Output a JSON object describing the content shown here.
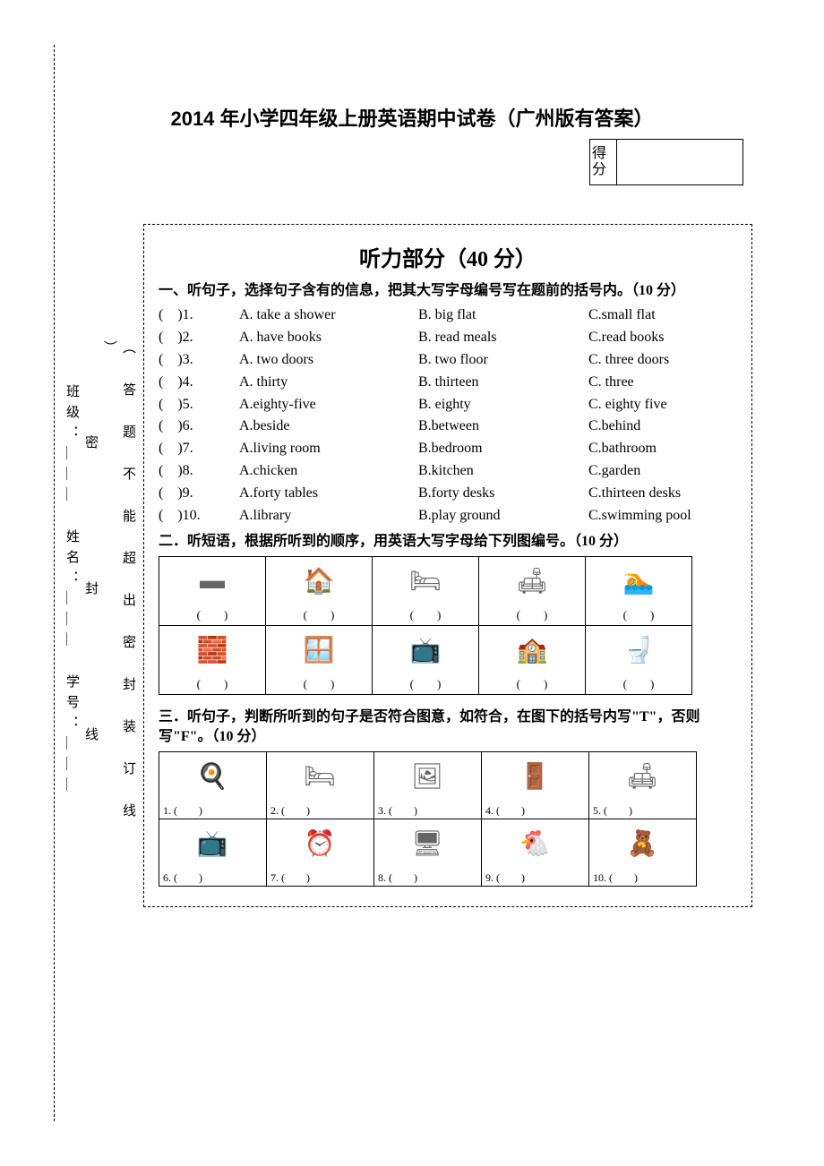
{
  "title": "2014 年小学四年级上册英语期中试卷（广州版有答案）",
  "score": {
    "label": "得分"
  },
  "sidebar": {
    "col1": "班级：＿＿＿ 姓名：＿＿＿ 学号：＿＿＿",
    "col2a": "密",
    "col2b": "封",
    "col2c": "线",
    "col3": "（ 答 题 不 能 超 出 密 封 装 订 线 ）"
  },
  "sectionTitle": "听力部分（40 分）",
  "q1": {
    "instr": "一、听句子，选择句子含有的信息，把其大写字母编号写在题前的括号内。（10 分）",
    "rows": [
      {
        "n": "(　)1.",
        "a": "A. take a shower",
        "b": "B. big flat",
        "c": "C.small flat"
      },
      {
        "n": "(　)2.",
        "a": "A. have books",
        "b": "B. read meals",
        "c": "C.read books"
      },
      {
        "n": "(　)3.",
        "a": "A. two doors",
        "b": "B. two floor",
        "c": "C. three doors"
      },
      {
        "n": "(　)4.",
        "a": "A. thirty",
        "b": "B. thirteen",
        "c": "C. three"
      },
      {
        "n": "(　)5.",
        "a": "A.eighty-five",
        "b": "B. eighty",
        "c": "C. eighty five"
      },
      {
        "n": "(　)6.",
        "a": "A.beside",
        "b": "B.between",
        "c": "C.behind"
      },
      {
        "n": "(　)7.",
        "a": "A.living room",
        "b": "B.bedroom",
        "c": "C.bathroom"
      },
      {
        "n": "(　)8.",
        "a": "A.chicken",
        "b": "B.kitchen",
        "c": "C.garden"
      },
      {
        "n": "(　)9.",
        "a": "A.forty tables",
        "b": "B.forty desks",
        "c": "C.thirteen desks"
      },
      {
        "n": "(　)10.",
        "a": "A.library",
        "b": "B.play ground",
        "c": "C.swimming pool"
      }
    ]
  },
  "q2": {
    "instr": "二．听短语，根据所听到的顺序，用英语大写字母给下列图编号。（10 分）",
    "caption": "(　　)",
    "icons_row1": [
      "▬",
      "🏠",
      "🛏",
      "🛋",
      "🏊"
    ],
    "icons_row2": [
      "🧱",
      "🪟",
      "📺",
      "🏫",
      "🚽"
    ]
  },
  "q3": {
    "instr": "三．听句子，判断所听到的句子是否符合图意，如符合，在图下的括号内写\"T\"，否则写\"F\"。（10 分）",
    "cells": [
      {
        "n": "1.",
        "icon": "🍳"
      },
      {
        "n": "2.",
        "icon": "🛏"
      },
      {
        "n": "3.",
        "icon": "🖼"
      },
      {
        "n": "4.",
        "icon": "🚪"
      },
      {
        "n": "5.",
        "icon": "🛋"
      },
      {
        "n": "6.",
        "icon": "📺"
      },
      {
        "n": "7.",
        "icon": "⏰"
      },
      {
        "n": "8.",
        "icon": "🖥"
      },
      {
        "n": "9.",
        "icon": "🐔"
      },
      {
        "n": "10.",
        "icon": "🧸"
      }
    ],
    "blank": "(　　)"
  }
}
